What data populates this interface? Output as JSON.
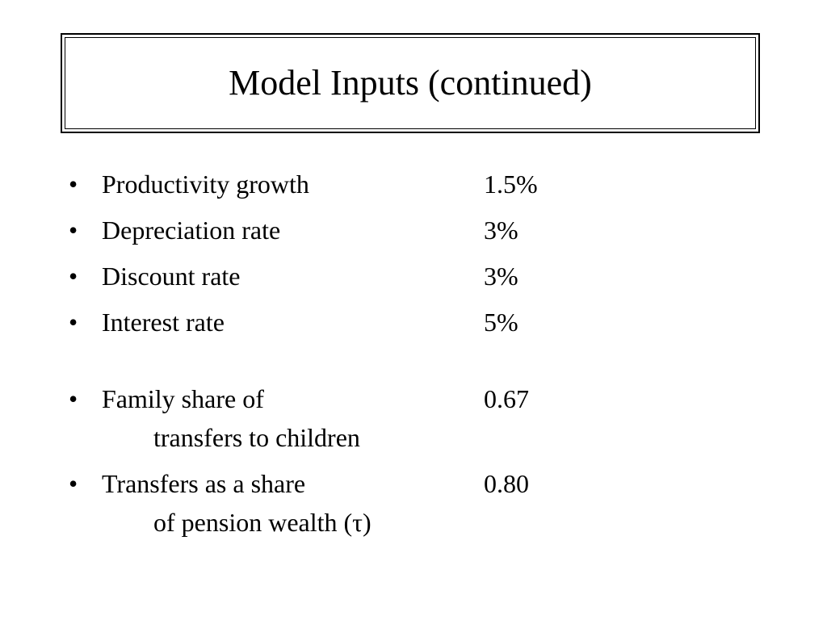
{
  "slide": {
    "title": "Model Inputs (continued)",
    "bullet_symbol": "•",
    "items": [
      {
        "label": "Productivity growth",
        "value": "1.5%"
      },
      {
        "label": "Depreciation rate",
        "value": "3%"
      },
      {
        "label": "Discount rate",
        "value": "3%"
      },
      {
        "label": "Interest rate",
        "value": "5%"
      },
      {
        "label": "Family share of",
        "label_cont": "transfers to children",
        "value": "0.67"
      },
      {
        "label": "Transfers as a share",
        "label_cont": "of pension wealth (τ)",
        "value": "0.80"
      }
    ]
  }
}
